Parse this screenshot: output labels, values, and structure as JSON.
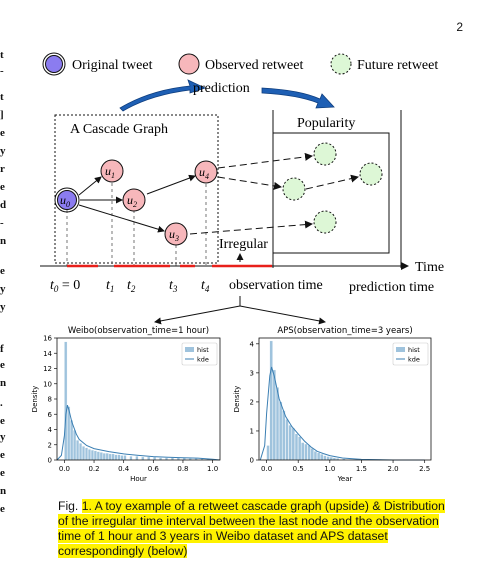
{
  "page_number": "2",
  "margin_fragments": [
    "t",
    "-",
    "t",
    "]",
    "e",
    "y",
    "r",
    "e",
    "d",
    "-",
    "n",
    "e",
    "y",
    "y",
    "f",
    "e",
    "n",
    ".",
    "e",
    "y",
    "e",
    "e",
    "n",
    "e"
  ],
  "legend": {
    "original": "Original tweet",
    "observed": "Observed retweet",
    "future": "Future retweet"
  },
  "colors": {
    "original_fill": "#8b7cf0",
    "observed_fill": "#f7b7bb",
    "future_fill": "#ddf7d6",
    "arrow_blue": "#1e5fb4",
    "time_red": "#e8201a",
    "hist_fill": "#9fc3dd",
    "kde_line": "#3b7fb3",
    "highlight": "#fff200"
  },
  "diagram": {
    "prediction_label": "prediction",
    "cascade_label": "A Cascade Graph",
    "popularity_label": "Popularity",
    "irregular_label": "Irregular",
    "time_label": "Time",
    "observation_time_label": "observation time",
    "prediction_time_label": "prediction time",
    "nodes": [
      {
        "id": "u0",
        "base": "u",
        "sub": "0"
      },
      {
        "id": "u1",
        "base": "u",
        "sub": "1"
      },
      {
        "id": "u2",
        "base": "u",
        "sub": "2"
      },
      {
        "id": "u3",
        "base": "u",
        "sub": "3"
      },
      {
        "id": "u4",
        "base": "u",
        "sub": "4"
      }
    ],
    "time_ticks": [
      {
        "base": "t",
        "sub": "0",
        "suffix": " = 0"
      },
      {
        "base": "t",
        "sub": "1",
        "suffix": ""
      },
      {
        "base": "t",
        "sub": "2",
        "suffix": ""
      },
      {
        "base": "t",
        "sub": "3",
        "suffix": ""
      },
      {
        "base": "t",
        "sub": "4",
        "suffix": ""
      }
    ]
  },
  "chart_data": [
    {
      "type": "bar",
      "title": "Weibo(observation_time=1 hour)",
      "xlabel": "Hour",
      "ylabel": "Density",
      "xlim": [
        -0.05,
        1.05
      ],
      "ylim": [
        0,
        16
      ],
      "xticks": [
        "0.0",
        "0.2",
        "0.4",
        "0.6",
        "0.8",
        "1.0"
      ],
      "yticks": [
        "0",
        "2",
        "4",
        "6",
        "8",
        "10",
        "12",
        "14",
        "16"
      ],
      "legend_position": "top-right",
      "legend": [
        "hist",
        "kde"
      ],
      "bin_width": 0.02,
      "hist_x": [
        0.0,
        0.02,
        0.04,
        0.06,
        0.08,
        0.1,
        0.12,
        0.14,
        0.16,
        0.18,
        0.2,
        0.22,
        0.24,
        0.26,
        0.28,
        0.3,
        0.32,
        0.34,
        0.36,
        0.38,
        0.4,
        0.44,
        0.48,
        0.52,
        0.56,
        0.6,
        0.64,
        0.68,
        0.72,
        0.76,
        0.8,
        0.84,
        0.88,
        0.92,
        0.96
      ],
      "hist_y": [
        15.5,
        7.0,
        5.2,
        3.9,
        2.6,
        2.2,
        1.8,
        1.6,
        1.4,
        1.3,
        1.2,
        1.1,
        1.0,
        0.9,
        0.9,
        0.8,
        0.8,
        0.7,
        0.7,
        0.6,
        0.6,
        0.5,
        0.5,
        0.4,
        0.4,
        0.4,
        0.3,
        0.3,
        0.3,
        0.3,
        0.3,
        0.2,
        0.2,
        0.2,
        0.2
      ],
      "kde_x": [
        -0.05,
        -0.02,
        0.0,
        0.01,
        0.02,
        0.03,
        0.05,
        0.08,
        0.1,
        0.15,
        0.2,
        0.3,
        0.4,
        0.5,
        0.6,
        0.7,
        0.8,
        0.9,
        1.0,
        1.05
      ],
      "kde_y": [
        0.0,
        0.6,
        3.2,
        6.0,
        7.2,
        6.6,
        5.0,
        3.4,
        2.7,
        1.9,
        1.5,
        1.1,
        0.8,
        0.6,
        0.45,
        0.35,
        0.3,
        0.25,
        0.1,
        0.0
      ]
    },
    {
      "type": "bar",
      "title": "APS(observation_time=3 years)",
      "xlabel": "Year",
      "ylabel": "Density",
      "xlim": [
        -0.12,
        2.6
      ],
      "ylim": [
        0,
        4.2
      ],
      "xticks": [
        "0.0",
        "0.5",
        "1.0",
        "1.5",
        "2.0",
        "2.5"
      ],
      "yticks": [
        "0",
        "1",
        "2",
        "3",
        "4"
      ],
      "legend_position": "top-right",
      "legend": [
        "hist",
        "kde"
      ],
      "bin_width": 0.05,
      "hist_x": [
        0.0,
        0.05,
        0.1,
        0.15,
        0.2,
        0.25,
        0.3,
        0.35,
        0.4,
        0.45,
        0.5,
        0.55,
        0.6,
        0.65,
        0.7,
        0.75,
        0.8,
        0.85,
        0.9,
        0.95,
        1.0,
        1.05,
        1.1,
        1.2,
        1.3
      ],
      "hist_y": [
        0.5,
        4.1,
        3.1,
        2.5,
        2.0,
        1.7,
        1.4,
        1.2,
        1.1,
        0.9,
        0.8,
        0.6,
        0.55,
        0.5,
        0.4,
        0.3,
        0.25,
        0.2,
        0.15,
        0.12,
        0.1,
        0.08,
        0.06,
        0.04,
        0.02
      ],
      "kde_x": [
        -0.1,
        -0.03,
        0.0,
        0.05,
        0.08,
        0.12,
        0.2,
        0.3,
        0.4,
        0.5,
        0.6,
        0.7,
        0.8,
        0.9,
        1.0,
        1.2,
        1.5,
        2.0,
        2.5
      ],
      "kde_y": [
        0.0,
        0.5,
        1.6,
        2.9,
        3.2,
        2.9,
        2.1,
        1.5,
        1.15,
        0.9,
        0.65,
        0.45,
        0.3,
        0.22,
        0.15,
        0.07,
        0.02,
        0.0,
        0.0
      ]
    }
  ],
  "caption": {
    "prefix": "Fig. ",
    "number": "1",
    "text": ". A toy example of a retweet cascade graph (upside) & Distribution of the irregular time interval between the last node and the observation time of 1 hour and 3 years in Weibo dataset and APS dataset correspondingly (below)"
  }
}
